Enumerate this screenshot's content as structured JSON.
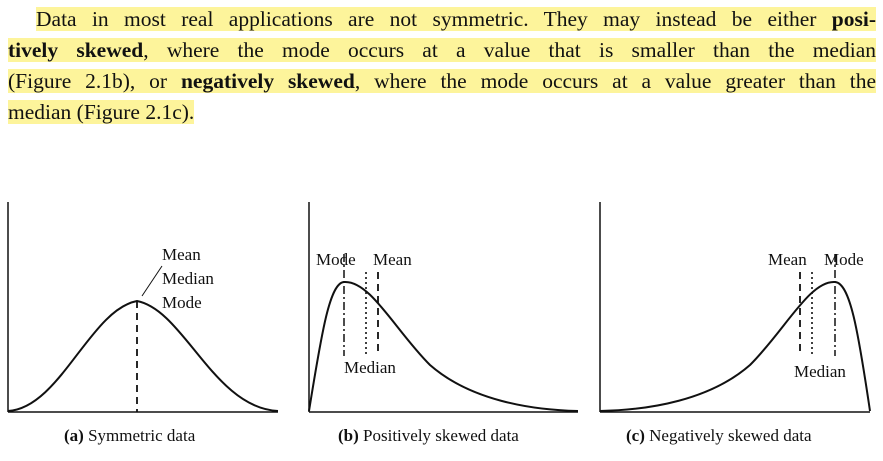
{
  "paragraph": {
    "line1_a": "Data in most real applications are not symmetric. They may instead be either ",
    "line1_b": "posi-",
    "line2_a": "tively skewed",
    "line2_b": ", where the mode occurs at a value that is smaller than the median",
    "line3_a": "(Figure 2.1b), or ",
    "line3_b": "negatively skewed",
    "line3_c": ", where the mode occurs at a value greater than the",
    "line4": "median (Figure 2.1c)."
  },
  "figures": [
    {
      "id": "a",
      "labels": [
        "Mean",
        "Median",
        "Mode"
      ],
      "caption_tag": "(a)",
      "caption_text": " Symmetric data"
    },
    {
      "id": "b",
      "label_mode": "Mode",
      "label_mean": "Mean",
      "label_median": "Median",
      "caption_tag": "(b)",
      "caption_text": " Positively skewed data"
    },
    {
      "id": "c",
      "label_mean": "Mean",
      "label_mode": "Mode",
      "label_median": "Median",
      "caption_tag": "(c)",
      "caption_text": " Negatively skewed data"
    }
  ]
}
